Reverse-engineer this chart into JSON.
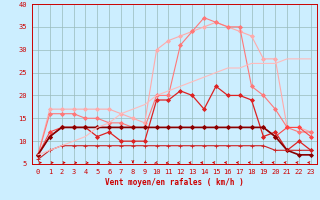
{
  "x": [
    0,
    1,
    2,
    3,
    4,
    5,
    6,
    7,
    8,
    9,
    10,
    11,
    12,
    13,
    14,
    15,
    16,
    17,
    18,
    19,
    20,
    21,
    22,
    23
  ],
  "series": [
    {
      "color": "#ffaaaa",
      "linewidth": 0.8,
      "marker": "D",
      "markersize": 2.0,
      "values": [
        7,
        17,
        17,
        17,
        17,
        17,
        17,
        16,
        15,
        14,
        30,
        32,
        33,
        34,
        35,
        36,
        35,
        34,
        33,
        28,
        28,
        13,
        13,
        12
      ]
    },
    {
      "color": "#ff7777",
      "linewidth": 0.8,
      "marker": "D",
      "markersize": 2.0,
      "values": [
        7,
        16,
        16,
        16,
        15,
        15,
        14,
        14,
        13,
        13,
        20,
        20,
        31,
        34,
        37,
        36,
        35,
        35,
        22,
        20,
        17,
        13,
        12,
        12
      ]
    },
    {
      "color": "#dd2222",
      "linewidth": 0.9,
      "marker": "D",
      "markersize": 2.0,
      "values": [
        7,
        11,
        13,
        13,
        13,
        11,
        12,
        10,
        10,
        10,
        19,
        19,
        21,
        20,
        17,
        22,
        20,
        20,
        19,
        11,
        12,
        8,
        10,
        8
      ]
    },
    {
      "color": "#ff4444",
      "linewidth": 0.8,
      "marker": "D",
      "markersize": 2.0,
      "values": [
        7,
        12,
        13,
        13,
        13,
        13,
        13,
        13,
        13,
        13,
        13,
        13,
        13,
        13,
        13,
        13,
        13,
        13,
        13,
        13,
        11,
        13,
        13,
        11
      ]
    },
    {
      "color": "#880000",
      "linewidth": 1.2,
      "marker": "D",
      "markersize": 2.0,
      "values": [
        7,
        11,
        13,
        13,
        13,
        13,
        13,
        13,
        13,
        13,
        13,
        13,
        13,
        13,
        13,
        13,
        13,
        13,
        13,
        13,
        11,
        8,
        7,
        7
      ]
    },
    {
      "color": "#cc2222",
      "linewidth": 0.8,
      "marker": "+",
      "markersize": 3.5,
      "values": [
        6,
        8,
        9,
        9,
        9,
        9,
        9,
        9,
        9,
        9,
        9,
        9,
        9,
        9,
        9,
        9,
        9,
        9,
        9,
        9,
        8,
        8,
        8,
        8
      ]
    },
    {
      "color": "#ffbbbb",
      "linewidth": 0.8,
      "marker": null,
      "markersize": 0,
      "values": [
        7,
        8,
        9,
        10,
        11,
        13,
        14,
        16,
        17,
        18,
        20,
        21,
        22,
        23,
        24,
        25,
        26,
        26,
        27,
        27,
        27,
        28,
        28,
        28
      ]
    }
  ],
  "ylim": [
    5,
    40
  ],
  "xlim": [
    -0.5,
    23.5
  ],
  "yticks": [
    5,
    10,
    15,
    20,
    25,
    30,
    35,
    40
  ],
  "xticks": [
    0,
    1,
    2,
    3,
    4,
    5,
    6,
    7,
    8,
    9,
    10,
    11,
    12,
    13,
    14,
    15,
    16,
    17,
    18,
    19,
    20,
    21,
    22,
    23
  ],
  "xlabel": "Vent moyen/en rafales ( km/h )",
  "background_color": "#cceeff",
  "grid_color": "#99bbbb",
  "arrow_color": "#cc0000",
  "tick_color": "#cc0000",
  "label_color": "#cc0000",
  "spine_color": "#cc0000"
}
